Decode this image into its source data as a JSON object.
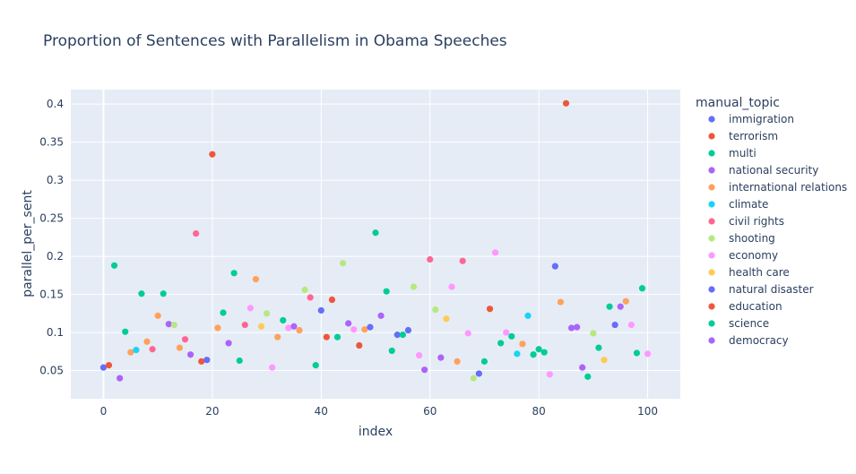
{
  "chart_data": {
    "type": "scatter",
    "title": "Proportion of Sentences with Parallelism in Obama Speeches",
    "xlabel": "index",
    "ylabel": "parallel_per_sent",
    "xlim": [
      -6,
      106
    ],
    "ylim": [
      0.013,
      0.419
    ],
    "x_ticks": [
      0,
      20,
      40,
      60,
      80,
      100
    ],
    "y_ticks": [
      0.05,
      0.1,
      0.15,
      0.2,
      0.25,
      0.3,
      0.35,
      0.4
    ],
    "y_tick_labels": [
      "0.05",
      "0.1",
      "0.15",
      "0.2",
      "0.25",
      "0.3",
      "0.35",
      "0.4"
    ],
    "grid": true,
    "plot_background": "#E5ECF6",
    "legend": {
      "title": "manual_topic",
      "placement": "right",
      "entries": [
        {
          "name": "immigration",
          "color": "#636EFA"
        },
        {
          "name": "terrorism",
          "color": "#EF553B"
        },
        {
          "name": "multi",
          "color": "#00CC96"
        },
        {
          "name": "national security",
          "color": "#AB63FA"
        },
        {
          "name": "international relations",
          "color": "#FFA15A"
        },
        {
          "name": "climate",
          "color": "#19D3F3"
        },
        {
          "name": "civil rights",
          "color": "#FF6692"
        },
        {
          "name": "shooting",
          "color": "#B6E880"
        },
        {
          "name": "economy",
          "color": "#FF97FF"
        },
        {
          "name": "health care",
          "color": "#FECB52"
        },
        {
          "name": "natural disaster",
          "color": "#636EFA"
        },
        {
          "name": "education",
          "color": "#EF553B"
        },
        {
          "name": "science",
          "color": "#00CC96"
        },
        {
          "name": "democracy",
          "color": "#AB63FA"
        }
      ]
    },
    "points": [
      {
        "x": 0,
        "y": 0.054,
        "color": "#636EFA"
      },
      {
        "x": 1,
        "y": 0.057,
        "color": "#EF553B"
      },
      {
        "x": 2,
        "y": 0.188,
        "color": "#00CC96"
      },
      {
        "x": 3,
        "y": 0.04,
        "color": "#AB63FA"
      },
      {
        "x": 4,
        "y": 0.101,
        "color": "#00CC96"
      },
      {
        "x": 5,
        "y": 0.074,
        "color": "#FFA15A"
      },
      {
        "x": 6,
        "y": 0.077,
        "color": "#19D3F3"
      },
      {
        "x": 7,
        "y": 0.151,
        "color": "#00CC96"
      },
      {
        "x": 8,
        "y": 0.088,
        "color": "#FFA15A"
      },
      {
        "x": 9,
        "y": 0.078,
        "color": "#FF6692"
      },
      {
        "x": 10,
        "y": 0.122,
        "color": "#FFA15A"
      },
      {
        "x": 11,
        "y": 0.151,
        "color": "#00CC96"
      },
      {
        "x": 12,
        "y": 0.111,
        "color": "#AB63FA"
      },
      {
        "x": 13,
        "y": 0.11,
        "color": "#B6E880"
      },
      {
        "x": 14,
        "y": 0.08,
        "color": "#FFA15A"
      },
      {
        "x": 15,
        "y": 0.091,
        "color": "#FF6692"
      },
      {
        "x": 16,
        "y": 0.071,
        "color": "#AB63FA"
      },
      {
        "x": 17,
        "y": 0.23,
        "color": "#FF6692"
      },
      {
        "x": 18,
        "y": 0.062,
        "color": "#EF553B"
      },
      {
        "x": 19,
        "y": 0.064,
        "color": "#636EFA"
      },
      {
        "x": 20,
        "y": 0.334,
        "color": "#EF553B"
      },
      {
        "x": 21,
        "y": 0.106,
        "color": "#FFA15A"
      },
      {
        "x": 22,
        "y": 0.126,
        "color": "#00CC96"
      },
      {
        "x": 23,
        "y": 0.086,
        "color": "#AB63FA"
      },
      {
        "x": 24,
        "y": 0.178,
        "color": "#00CC96"
      },
      {
        "x": 25,
        "y": 0.063,
        "color": "#00CC96"
      },
      {
        "x": 26,
        "y": 0.11,
        "color": "#FF6692"
      },
      {
        "x": 27,
        "y": 0.132,
        "color": "#FF97FF"
      },
      {
        "x": 28,
        "y": 0.17,
        "color": "#FFA15A"
      },
      {
        "x": 29,
        "y": 0.108,
        "color": "#FECB52"
      },
      {
        "x": 30,
        "y": 0.125,
        "color": "#B6E880"
      },
      {
        "x": 31,
        "y": 0.054,
        "color": "#FF97FF"
      },
      {
        "x": 32,
        "y": 0.094,
        "color": "#FFA15A"
      },
      {
        "x": 33,
        "y": 0.116,
        "color": "#00CC96"
      },
      {
        "x": 34,
        "y": 0.106,
        "color": "#FF97FF"
      },
      {
        "x": 35,
        "y": 0.108,
        "color": "#AB63FA"
      },
      {
        "x": 36,
        "y": 0.103,
        "color": "#FFA15A"
      },
      {
        "x": 37,
        "y": 0.156,
        "color": "#B6E880"
      },
      {
        "x": 38,
        "y": 0.146,
        "color": "#FF6692"
      },
      {
        "x": 39,
        "y": 0.057,
        "color": "#00CC96"
      },
      {
        "x": 40,
        "y": 0.129,
        "color": "#636EFA"
      },
      {
        "x": 41,
        "y": 0.094,
        "color": "#EF553B"
      },
      {
        "x": 42,
        "y": 0.143,
        "color": "#EF553B"
      },
      {
        "x": 43,
        "y": 0.094,
        "color": "#00CC96"
      },
      {
        "x": 44,
        "y": 0.191,
        "color": "#B6E880"
      },
      {
        "x": 45,
        "y": 0.112,
        "color": "#AB63FA"
      },
      {
        "x": 46,
        "y": 0.104,
        "color": "#FF97FF"
      },
      {
        "x": 47,
        "y": 0.083,
        "color": "#EF553B"
      },
      {
        "x": 48,
        "y": 0.104,
        "color": "#FFA15A"
      },
      {
        "x": 49,
        "y": 0.107,
        "color": "#636EFA"
      },
      {
        "x": 50,
        "y": 0.231,
        "color": "#00CC96"
      },
      {
        "x": 51,
        "y": 0.122,
        "color": "#AB63FA"
      },
      {
        "x": 52,
        "y": 0.154,
        "color": "#00CC96"
      },
      {
        "x": 53,
        "y": 0.076,
        "color": "#00CC96"
      },
      {
        "x": 54,
        "y": 0.097,
        "color": "#636EFA"
      },
      {
        "x": 55,
        "y": 0.097,
        "color": "#00CC96"
      },
      {
        "x": 56,
        "y": 0.103,
        "color": "#636EFA"
      },
      {
        "x": 57,
        "y": 0.16,
        "color": "#B6E880"
      },
      {
        "x": 58,
        "y": 0.07,
        "color": "#FF97FF"
      },
      {
        "x": 59,
        "y": 0.051,
        "color": "#AB63FA"
      },
      {
        "x": 60,
        "y": 0.196,
        "color": "#FF6692"
      },
      {
        "x": 61,
        "y": 0.13,
        "color": "#B6E880"
      },
      {
        "x": 62,
        "y": 0.067,
        "color": "#AB63FA"
      },
      {
        "x": 63,
        "y": 0.118,
        "color": "#FECB52"
      },
      {
        "x": 64,
        "y": 0.16,
        "color": "#FF97FF"
      },
      {
        "x": 65,
        "y": 0.062,
        "color": "#FFA15A"
      },
      {
        "x": 66,
        "y": 0.194,
        "color": "#FF6692"
      },
      {
        "x": 67,
        "y": 0.099,
        "color": "#FF97FF"
      },
      {
        "x": 68,
        "y": 0.04,
        "color": "#B6E880"
      },
      {
        "x": 69,
        "y": 0.046,
        "color": "#636EFA"
      },
      {
        "x": 70,
        "y": 0.062,
        "color": "#00CC96"
      },
      {
        "x": 71,
        "y": 0.131,
        "color": "#EF553B"
      },
      {
        "x": 72,
        "y": 0.205,
        "color": "#FF97FF"
      },
      {
        "x": 73,
        "y": 0.086,
        "color": "#00CC96"
      },
      {
        "x": 74,
        "y": 0.1,
        "color": "#FF97FF"
      },
      {
        "x": 75,
        "y": 0.095,
        "color": "#00CC96"
      },
      {
        "x": 76,
        "y": 0.072,
        "color": "#19D3F3"
      },
      {
        "x": 77,
        "y": 0.085,
        "color": "#FFA15A"
      },
      {
        "x": 78,
        "y": 0.122,
        "color": "#19D3F3"
      },
      {
        "x": 79,
        "y": 0.071,
        "color": "#00CC96"
      },
      {
        "x": 80,
        "y": 0.078,
        "color": "#00CC96"
      },
      {
        "x": 81,
        "y": 0.074,
        "color": "#00CC96"
      },
      {
        "x": 82,
        "y": 0.045,
        "color": "#FF97FF"
      },
      {
        "x": 83,
        "y": 0.187,
        "color": "#636EFA"
      },
      {
        "x": 84,
        "y": 0.14,
        "color": "#FFA15A"
      },
      {
        "x": 85,
        "y": 0.401,
        "color": "#EF553B"
      },
      {
        "x": 86,
        "y": 0.106,
        "color": "#AB63FA"
      },
      {
        "x": 87,
        "y": 0.107,
        "color": "#AB63FA"
      },
      {
        "x": 88,
        "y": 0.054,
        "color": "#AB63FA"
      },
      {
        "x": 89,
        "y": 0.042,
        "color": "#00CC96"
      },
      {
        "x": 90,
        "y": 0.099,
        "color": "#B6E880"
      },
      {
        "x": 91,
        "y": 0.08,
        "color": "#00CC96"
      },
      {
        "x": 92,
        "y": 0.064,
        "color": "#FECB52"
      },
      {
        "x": 93,
        "y": 0.134,
        "color": "#00CC96"
      },
      {
        "x": 94,
        "y": 0.11,
        "color": "#636EFA"
      },
      {
        "x": 95,
        "y": 0.134,
        "color": "#AB63FA"
      },
      {
        "x": 96,
        "y": 0.141,
        "color": "#FFA15A"
      },
      {
        "x": 97,
        "y": 0.11,
        "color": "#FF97FF"
      },
      {
        "x": 98,
        "y": 0.073,
        "color": "#00CC96"
      },
      {
        "x": 99,
        "y": 0.158,
        "color": "#00CC96"
      },
      {
        "x": 100,
        "y": 0.072,
        "color": "#FF97FF"
      }
    ]
  }
}
